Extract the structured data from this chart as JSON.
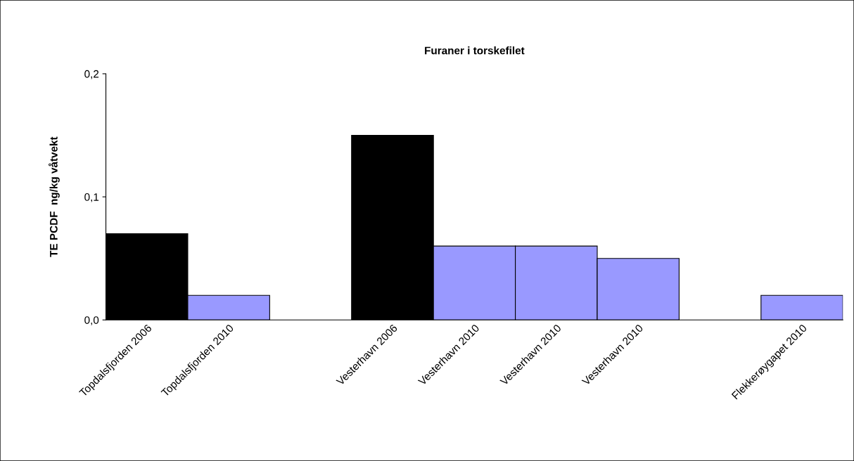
{
  "chart_data": {
    "type": "bar",
    "title": "Furaner i torskefilet",
    "ylabel": "TE PCDF  ng/kg våtvekt",
    "categories": [
      "Topdalsfjorden 2006",
      "Topdalsfjorden 2010",
      null,
      "Vesterhavn 2006",
      "Vesterhavn 2010",
      "Vesterhavn 2010",
      "Vesterhavn 2010",
      null,
      "Flekkerøygapet 2010"
    ],
    "values": [
      0.07,
      0.02,
      null,
      0.15,
      0.06,
      0.06,
      0.05,
      null,
      0.02
    ],
    "colors": [
      "#000000",
      "#9999ff",
      "#9999ff",
      "#000000",
      "#9999ff",
      "#9999ff",
      "#9999ff",
      "#9999ff",
      "#9999ff"
    ],
    "ylim": [
      0,
      0.2
    ],
    "yticks": [
      {
        "value": 0,
        "label": "0,0"
      },
      {
        "value": 0.1,
        "label": "0,1"
      },
      {
        "value": 0.2,
        "label": "0,2"
      }
    ],
    "grid": false,
    "legend": false
  }
}
